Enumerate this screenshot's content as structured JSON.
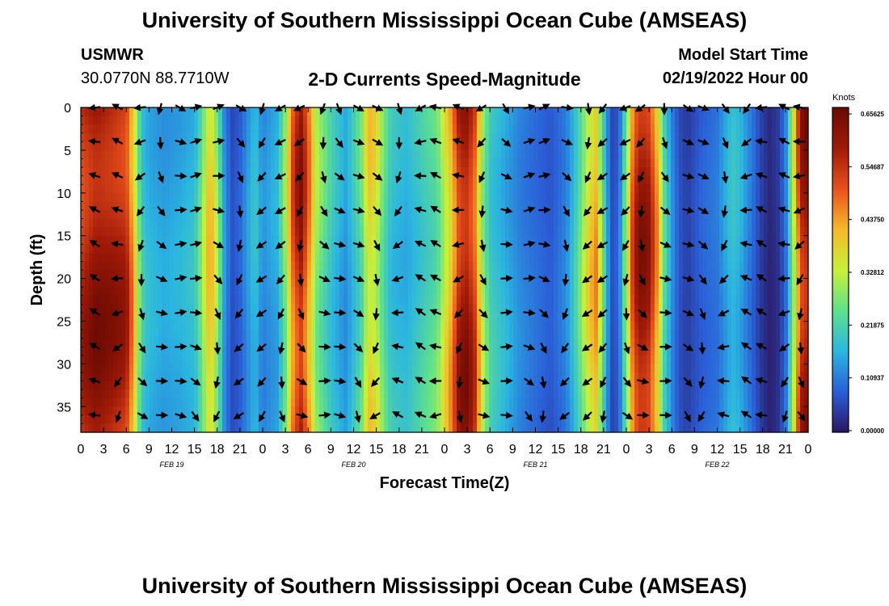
{
  "header": {
    "title": "University of Southern Mississippi Ocean Cube (AMSEAS)",
    "station": "USMWR",
    "coords": "30.0770N  88.7710W",
    "subtitle": "2-D Currents Speed-Magnitude",
    "model_start_label": "Model Start Time",
    "model_start_value": "02/19/2022 Hour 00"
  },
  "footer": {
    "title": "University of Southern Mississippi Ocean Cube (AMSEAS)"
  },
  "chart_data": {
    "type": "heatmap",
    "title": "2-D Currents Speed-Magnitude",
    "xlabel": "Forecast Time(Z)",
    "ylabel": "Depth (ft)",
    "ylim": [
      0,
      38
    ],
    "y_ticks": [
      "0",
      "5",
      "10",
      "15",
      "20",
      "25",
      "30",
      "35"
    ],
    "y_tick_values": [
      0,
      5,
      10,
      15,
      20,
      25,
      30,
      35
    ],
    "x_ticks": [
      "0",
      "3",
      "6",
      "9",
      "12",
      "15",
      "18",
      "21",
      "0",
      "3",
      "6",
      "9",
      "12",
      "15",
      "18",
      "21",
      "0",
      "3",
      "6",
      "9",
      "12",
      "15",
      "18",
      "21",
      "0",
      "3",
      "6",
      "9",
      "12",
      "15",
      "18",
      "21",
      "0"
    ],
    "x_hours": [
      0,
      96
    ],
    "date_labels": [
      "FEB 19",
      "FEB 20",
      "FEB 21",
      "FEB 22"
    ],
    "date_label_hours": [
      12,
      36,
      60,
      84
    ],
    "colorbar": {
      "unit": "Knots",
      "labels": [
        "0.65625",
        "0.54687",
        "0.43750",
        "0.32812",
        "0.21875",
        "0.10937",
        "0.00000"
      ],
      "range": [
        0.0,
        0.65625
      ],
      "colors": [
        "#2a1660",
        "#2b5fd8",
        "#2bb6e0",
        "#5fe08c",
        "#c8f03a",
        "#f5b92a",
        "#e8501c",
        "#a01a08",
        "#6a0a02"
      ]
    },
    "speed_by_hour": {
      "hours": [
        0,
        2,
        4,
        6,
        7,
        8,
        9,
        11,
        13,
        15,
        16,
        17,
        18,
        19,
        20,
        21,
        22,
        23,
        24,
        26,
        27,
        28,
        29,
        30,
        31,
        33,
        35,
        37,
        38,
        39,
        40,
        41,
        43,
        45,
        47,
        49,
        50,
        51,
        52,
        53,
        54,
        55,
        56,
        58,
        60,
        62,
        64,
        65,
        66,
        67,
        68,
        69,
        70,
        71,
        72,
        73,
        74,
        75,
        76,
        77,
        78,
        79,
        80,
        81,
        82,
        84,
        85,
        86,
        87,
        88,
        89,
        90,
        91,
        92,
        93,
        94,
        95,
        96
      ],
      "values": [
        0.55,
        0.6,
        0.58,
        0.55,
        0.4,
        0.2,
        0.16,
        0.14,
        0.15,
        0.17,
        0.26,
        0.4,
        0.28,
        0.12,
        0.06,
        0.08,
        0.13,
        0.18,
        0.12,
        0.16,
        0.28,
        0.48,
        0.58,
        0.46,
        0.3,
        0.2,
        0.14,
        0.24,
        0.38,
        0.34,
        0.24,
        0.18,
        0.16,
        0.2,
        0.24,
        0.42,
        0.56,
        0.58,
        0.5,
        0.3,
        0.2,
        0.18,
        0.16,
        0.12,
        0.1,
        0.08,
        0.12,
        0.18,
        0.26,
        0.36,
        0.42,
        0.22,
        0.06,
        0.08,
        0.28,
        0.52,
        0.58,
        0.55,
        0.42,
        0.22,
        0.12,
        0.06,
        0.04,
        0.06,
        0.08,
        0.1,
        0.14,
        0.18,
        0.16,
        0.12,
        0.08,
        0.04,
        0.02,
        0.04,
        0.1,
        0.3,
        0.56,
        0.6
      ]
    },
    "vector_depths": [
      0,
      4,
      8,
      12,
      16,
      20,
      24,
      28,
      32,
      36
    ],
    "vector_hours": [
      2,
      5,
      8,
      10.5,
      13,
      15,
      18,
      21,
      24,
      26.5,
      29,
      32,
      34,
      36.5,
      39,
      42,
      45,
      47,
      50,
      53,
      56,
      59,
      61,
      64,
      67,
      69,
      72,
      74,
      77,
      80,
      82,
      85,
      88,
      90,
      93,
      95
    ]
  }
}
